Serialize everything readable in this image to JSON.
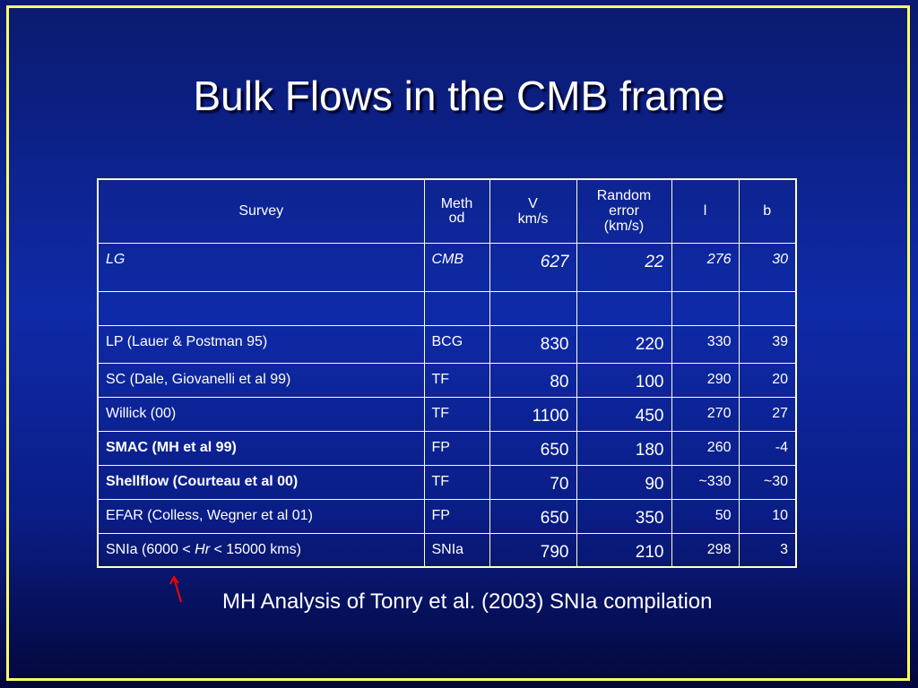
{
  "title": "Bulk Flows in the CMB frame",
  "headers": {
    "survey": "Survey",
    "method": [
      "Meth",
      "od"
    ],
    "v": [
      "V",
      "km/s"
    ],
    "random_error": [
      "Random",
      "error",
      "(km/s)"
    ],
    "l": "l",
    "b": "b"
  },
  "lg_row": {
    "survey": "LG",
    "method": "CMB",
    "v": "627",
    "error": "22",
    "l": "276",
    "b": "30"
  },
  "rows": [
    {
      "survey": "LP (Lauer & Postman 95)",
      "method": "BCG",
      "v": "830",
      "error": "220",
      "l": "330",
      "b": "39"
    },
    {
      "survey": "SC (Dale, Giovanelli et al 99)",
      "method": "TF",
      "v": "80",
      "error": "100",
      "l": "290",
      "b": "20"
    },
    {
      "survey": "Willick (00)",
      "method": "TF",
      "v": "1100",
      "error": "450",
      "l": "270",
      "b": "27"
    },
    {
      "survey": "SMAC (MH et al 99)",
      "method": "FP",
      "v": "650",
      "error": "180",
      "l": "260",
      "b": "-4"
    },
    {
      "survey": "Shellflow (Courteau et al 00)",
      "method": "TF",
      "v": "70",
      "error": "90",
      "l": "~330",
      "b": "~30"
    },
    {
      "survey": "EFAR (Colless, Wegner et al 01)",
      "method": "FP",
      "v": "650",
      "error": "350",
      "l": "50",
      "b": "10"
    },
    {
      "survey_parts": [
        "SNIa (6000 < ",
        "Hr",
        " < 15000 kms)"
      ],
      "method": "SNIa",
      "v": "790",
      "error": "210",
      "l": "298",
      "b": "3"
    }
  ],
  "caption": "MH Analysis of Tonry et al. (2003) SNIa compilation",
  "colors": {
    "frame": "#ffff66",
    "arrow": "#ff0000",
    "table_border": "#ffffcc"
  }
}
